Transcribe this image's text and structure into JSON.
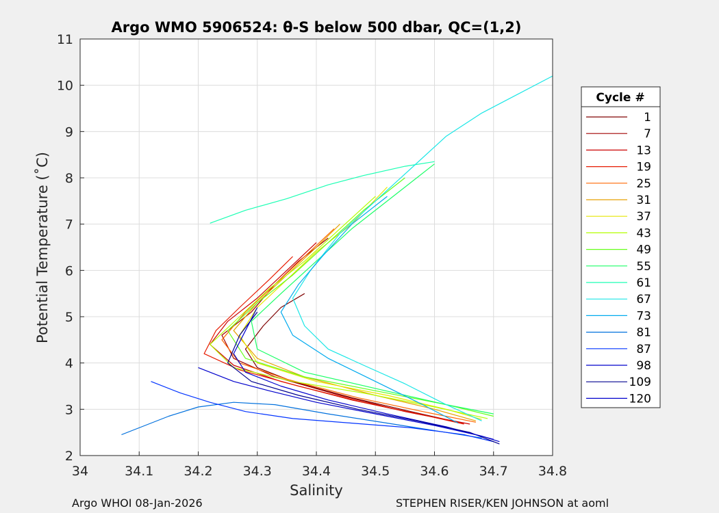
{
  "chart_data": {
    "type": "line",
    "title": "Argo WMO 5906524: θ-S below 500 dbar,  QC=(1,2)",
    "xlabel": "Salinity",
    "ylabel": "Potential Temperature (˚C)",
    "xlim": [
      34.0,
      34.8
    ],
    "ylim": [
      2,
      11
    ],
    "xticks": [
      34.0,
      34.1,
      34.2,
      34.3,
      34.4,
      34.5,
      34.6,
      34.7,
      34.8
    ],
    "xtick_labels": [
      "34",
      "34.1",
      "34.2",
      "34.3",
      "34.4",
      "34.5",
      "34.6",
      "34.7",
      "34.8"
    ],
    "yticks": [
      2,
      3,
      4,
      5,
      6,
      7,
      8,
      9,
      10,
      11
    ],
    "ytick_labels": [
      "2",
      "3",
      "4",
      "5",
      "6",
      "7",
      "8",
      "9",
      "10",
      "11"
    ],
    "grid": true,
    "legend": {
      "title": "Cycle #",
      "placement": "right",
      "entries": [
        {
          "label": "1",
          "color": "#7f0000"
        },
        {
          "label": "7",
          "color": "#a00000"
        },
        {
          "label": "13",
          "color": "#cc0000"
        },
        {
          "label": "19",
          "color": "#e61a00"
        },
        {
          "label": "25",
          "color": "#ff6600"
        },
        {
          "label": "31",
          "color": "#e6a100"
        },
        {
          "label": "37",
          "color": "#e6e600"
        },
        {
          "label": "43",
          "color": "#b3ff00"
        },
        {
          "label": "49",
          "color": "#66ff1a"
        },
        {
          "label": "55",
          "color": "#1aff66"
        },
        {
          "label": "61",
          "color": "#1affb3"
        },
        {
          "label": "67",
          "color": "#1ae6e6"
        },
        {
          "label": "73",
          "color": "#00aaee"
        },
        {
          "label": "81",
          "color": "#0070dd"
        },
        {
          "label": "87",
          "color": "#0033ff"
        },
        {
          "label": "98",
          "color": "#0000cc"
        },
        {
          "label": "109",
          "color": "#00008f"
        },
        {
          "label": "120",
          "color": "#0000cc"
        }
      ]
    },
    "series": [
      {
        "name": "1",
        "color": "#7f0000",
        "points": [
          [
            34.38,
            5.5
          ],
          [
            34.34,
            5.2
          ],
          [
            34.31,
            4.8
          ],
          [
            34.28,
            4.3
          ],
          [
            34.3,
            3.9
          ],
          [
            34.36,
            3.6
          ],
          [
            34.46,
            3.25
          ],
          [
            34.56,
            2.95
          ],
          [
            34.64,
            2.72
          ]
        ]
      },
      {
        "name": "7",
        "color": "#a00000",
        "points": [
          [
            34.42,
            6.7
          ],
          [
            34.37,
            6.2
          ],
          [
            34.33,
            5.7
          ],
          [
            34.29,
            5.1
          ],
          [
            34.24,
            4.6
          ],
          [
            34.26,
            4.1
          ],
          [
            34.33,
            3.7
          ],
          [
            34.44,
            3.3
          ],
          [
            34.55,
            2.95
          ],
          [
            34.65,
            2.7
          ]
        ]
      },
      {
        "name": "13",
        "color": "#cc0000",
        "points": [
          [
            34.4,
            6.6
          ],
          [
            34.35,
            6.0
          ],
          [
            34.3,
            5.4
          ],
          [
            34.25,
            4.9
          ],
          [
            34.22,
            4.4
          ],
          [
            34.26,
            3.95
          ],
          [
            34.34,
            3.6
          ],
          [
            34.46,
            3.2
          ],
          [
            34.57,
            2.9
          ],
          [
            34.66,
            2.68
          ]
        ]
      },
      {
        "name": "19",
        "color": "#e61a00",
        "points": [
          [
            34.36,
            6.3
          ],
          [
            34.32,
            5.8
          ],
          [
            34.27,
            5.2
          ],
          [
            34.23,
            4.7
          ],
          [
            34.21,
            4.2
          ],
          [
            34.27,
            3.85
          ],
          [
            34.37,
            3.5
          ],
          [
            34.48,
            3.15
          ],
          [
            34.58,
            2.88
          ],
          [
            34.65,
            2.68
          ]
        ]
      },
      {
        "name": "25",
        "color": "#ff6600",
        "points": [
          [
            34.43,
            6.9
          ],
          [
            34.38,
            6.3
          ],
          [
            34.33,
            5.7
          ],
          [
            34.28,
            5.1
          ],
          [
            34.24,
            4.5
          ],
          [
            34.27,
            4.0
          ],
          [
            34.35,
            3.65
          ],
          [
            34.47,
            3.25
          ],
          [
            34.58,
            2.95
          ],
          [
            34.67,
            2.72
          ]
        ]
      },
      {
        "name": "31",
        "color": "#e6a100",
        "points": [
          [
            34.44,
            7.0
          ],
          [
            34.4,
            6.5
          ],
          [
            34.35,
            5.9
          ],
          [
            34.3,
            5.3
          ],
          [
            34.26,
            4.7
          ],
          [
            34.3,
            4.1
          ],
          [
            34.38,
            3.7
          ],
          [
            34.5,
            3.3
          ],
          [
            34.6,
            3.0
          ],
          [
            34.67,
            2.75
          ]
        ]
      },
      {
        "name": "37",
        "color": "#e6e600",
        "points": [
          [
            34.52,
            7.8
          ],
          [
            34.46,
            7.0
          ],
          [
            34.4,
            6.4
          ],
          [
            34.35,
            5.8
          ],
          [
            34.3,
            5.2
          ],
          [
            34.27,
            4.6
          ],
          [
            34.3,
            4.0
          ],
          [
            34.4,
            3.6
          ],
          [
            34.52,
            3.3
          ],
          [
            34.62,
            3.0
          ],
          [
            34.68,
            2.78
          ]
        ]
      },
      {
        "name": "43",
        "color": "#b3ff00",
        "points": [
          [
            34.5,
            7.6
          ],
          [
            34.44,
            6.9
          ],
          [
            34.38,
            6.2
          ],
          [
            34.32,
            5.6
          ],
          [
            34.27,
            5.0
          ],
          [
            34.22,
            4.4
          ],
          [
            34.26,
            3.9
          ],
          [
            34.36,
            3.6
          ],
          [
            34.48,
            3.35
          ],
          [
            34.6,
            3.05
          ],
          [
            34.69,
            2.8
          ]
        ]
      },
      {
        "name": "49",
        "color": "#66ff1a",
        "points": [
          [
            34.55,
            8.0
          ],
          [
            34.48,
            7.3
          ],
          [
            34.42,
            6.6
          ],
          [
            34.36,
            5.9
          ],
          [
            34.3,
            5.3
          ],
          [
            34.25,
            4.7
          ],
          [
            34.28,
            4.1
          ],
          [
            34.38,
            3.7
          ],
          [
            34.5,
            3.4
          ],
          [
            34.62,
            3.1
          ],
          [
            34.7,
            2.85
          ]
        ]
      },
      {
        "name": "55",
        "color": "#1aff66",
        "points": [
          [
            34.6,
            8.3
          ],
          [
            34.53,
            7.6
          ],
          [
            34.46,
            6.9
          ],
          [
            34.4,
            6.2
          ],
          [
            34.34,
            5.5
          ],
          [
            34.29,
            4.9
          ],
          [
            34.3,
            4.3
          ],
          [
            34.38,
            3.8
          ],
          [
            34.5,
            3.45
          ],
          [
            34.62,
            3.1
          ],
          [
            34.7,
            2.9
          ]
        ]
      },
      {
        "name": "61",
        "color": "#1affb3",
        "points": [
          [
            34.22,
            7.02
          ],
          [
            34.28,
            7.3
          ],
          [
            34.35,
            7.55
          ],
          [
            34.42,
            7.85
          ],
          [
            34.48,
            8.05
          ],
          [
            34.55,
            8.25
          ],
          [
            34.6,
            8.35
          ]
        ]
      },
      {
        "name": "67",
        "color": "#1ae6e6",
        "points": [
          [
            34.8,
            10.2
          ],
          [
            34.74,
            9.8
          ],
          [
            34.68,
            9.4
          ],
          [
            34.62,
            8.9
          ],
          [
            34.56,
            8.2
          ],
          [
            34.5,
            7.5
          ],
          [
            34.44,
            6.8
          ],
          [
            34.39,
            6.0
          ],
          [
            34.36,
            5.4
          ],
          [
            34.38,
            4.8
          ],
          [
            34.42,
            4.3
          ],
          [
            34.48,
            3.95
          ],
          [
            34.55,
            3.55
          ],
          [
            34.62,
            3.1
          ],
          [
            34.68,
            2.75
          ]
        ]
      },
      {
        "name": "73",
        "color": "#00aaee",
        "points": [
          [
            34.52,
            7.6
          ],
          [
            34.46,
            7.0
          ],
          [
            34.41,
            6.3
          ],
          [
            34.37,
            5.7
          ],
          [
            34.34,
            5.1
          ],
          [
            34.36,
            4.6
          ],
          [
            34.42,
            4.1
          ],
          [
            34.5,
            3.6
          ],
          [
            34.58,
            3.1
          ],
          [
            34.64,
            2.7
          ]
        ]
      },
      {
        "name": "81",
        "color": "#0070dd",
        "points": [
          [
            34.07,
            2.45
          ],
          [
            34.11,
            2.65
          ],
          [
            34.15,
            2.85
          ],
          [
            34.2,
            3.05
          ],
          [
            34.26,
            3.15
          ],
          [
            34.33,
            3.1
          ],
          [
            34.42,
            2.9
          ],
          [
            34.52,
            2.7
          ],
          [
            34.62,
            2.5
          ],
          [
            34.68,
            2.38
          ]
        ]
      },
      {
        "name": "87",
        "color": "#0033ff",
        "points": [
          [
            34.12,
            3.6
          ],
          [
            34.17,
            3.35
          ],
          [
            34.22,
            3.15
          ],
          [
            34.28,
            2.95
          ],
          [
            34.36,
            2.8
          ],
          [
            34.46,
            2.7
          ],
          [
            34.56,
            2.6
          ],
          [
            34.65,
            2.45
          ],
          [
            34.7,
            2.3
          ]
        ]
      },
      {
        "name": "98",
        "color": "#0000cc",
        "points": [
          [
            34.3,
            5.2
          ],
          [
            34.28,
            4.7
          ],
          [
            34.26,
            4.2
          ],
          [
            34.28,
            3.8
          ],
          [
            34.34,
            3.5
          ],
          [
            34.42,
            3.2
          ],
          [
            34.52,
            2.9
          ],
          [
            34.62,
            2.62
          ],
          [
            34.7,
            2.35
          ]
        ]
      },
      {
        "name": "109",
        "color": "#00008f",
        "points": [
          [
            34.3,
            5.1
          ],
          [
            34.27,
            4.6
          ],
          [
            34.25,
            4.0
          ],
          [
            34.29,
            3.6
          ],
          [
            34.37,
            3.3
          ],
          [
            34.47,
            3.0
          ],
          [
            34.57,
            2.75
          ],
          [
            34.66,
            2.5
          ],
          [
            34.71,
            2.25
          ]
        ]
      },
      {
        "name": "120",
        "color": "#0000cc",
        "points": [
          [
            34.2,
            3.9
          ],
          [
            34.26,
            3.6
          ],
          [
            34.32,
            3.4
          ],
          [
            34.4,
            3.15
          ],
          [
            34.5,
            2.9
          ],
          [
            34.6,
            2.65
          ],
          [
            34.68,
            2.42
          ],
          [
            34.71,
            2.3
          ]
        ]
      }
    ]
  },
  "footer": {
    "left": "Argo WHOI 08-Jan-2026",
    "right": "STEPHEN RISER/KEN JOHNSON at aoml"
  }
}
